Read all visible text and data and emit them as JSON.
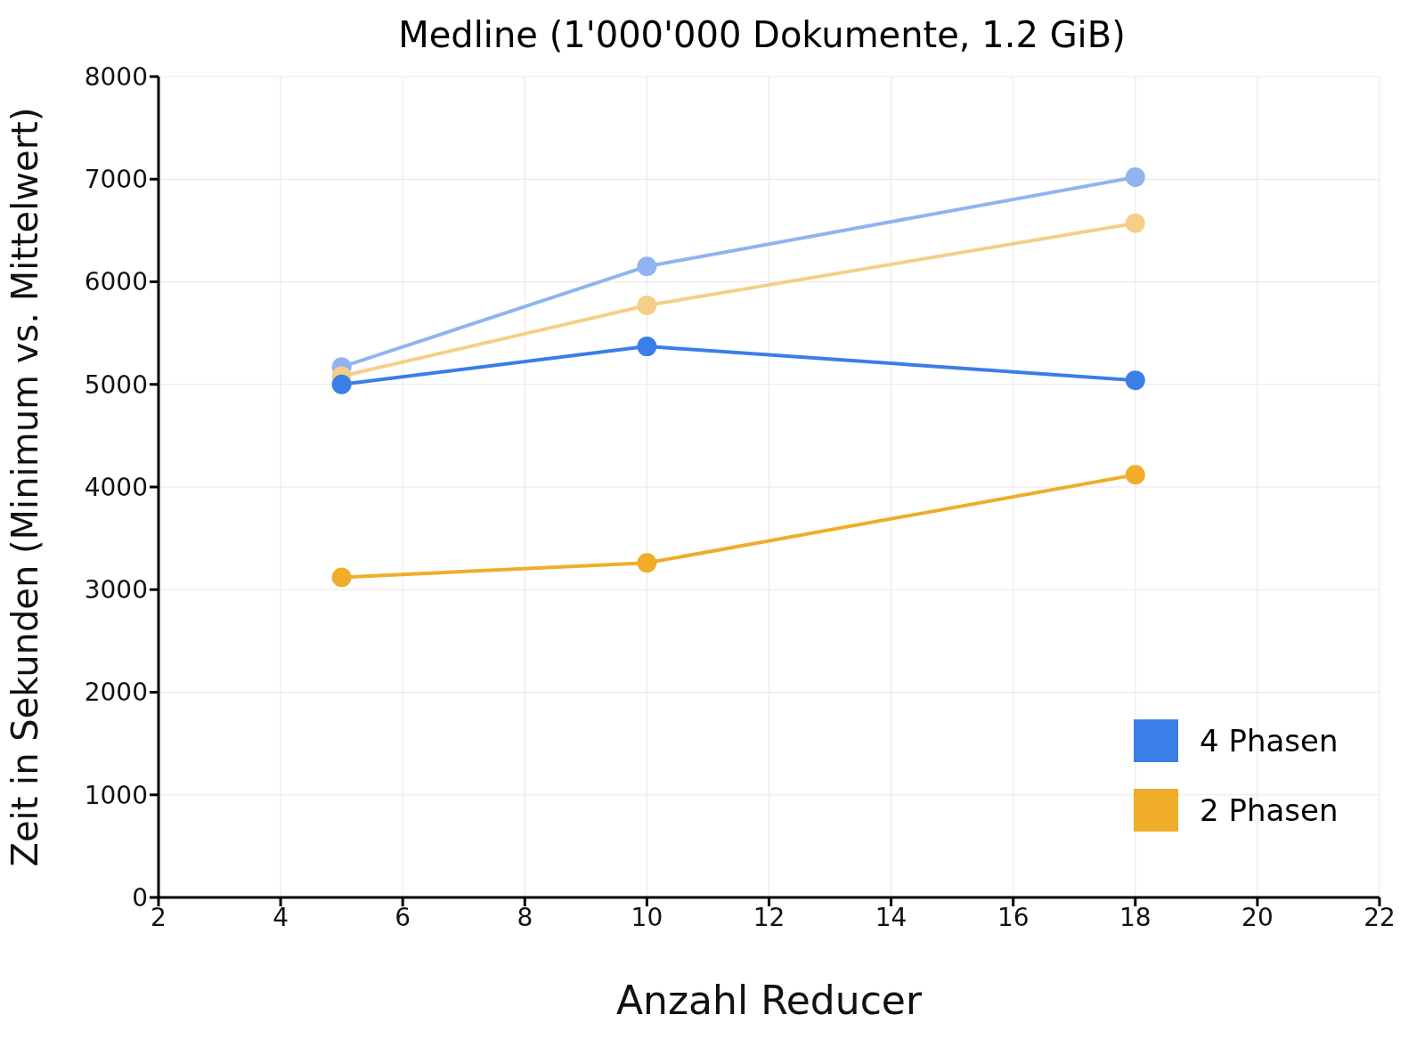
{
  "chart_data": {
    "type": "line",
    "title": "Medline (1'000'000 Dokumente, 1.2 GiB)",
    "xlabel": "Anzahl Reducer",
    "ylabel": "Zeit in Sekunden (Minimum vs. Mittelwert)",
    "x": [
      5,
      10,
      18
    ],
    "series": [
      {
        "color": "#8fb4ef",
        "values": [
          5170,
          6150,
          7020
        ]
      },
      {
        "color": "#f5cf88",
        "values": [
          5080,
          5770,
          6570
        ]
      },
      {
        "name": "4 Phasen",
        "color": "#3a7ee8",
        "values": [
          5000,
          5370,
          5040
        ]
      },
      {
        "name": "2 Phasen",
        "color": "#f0ad2a",
        "values": [
          3120,
          3260,
          4120
        ]
      }
    ],
    "xlim": [
      2,
      22
    ],
    "xticks": [
      2,
      4,
      6,
      8,
      10,
      12,
      14,
      16,
      18,
      20,
      22
    ],
    "ylim": [
      0,
      8000
    ],
    "yticks": [
      0,
      1000,
      2000,
      3000,
      4000,
      5000,
      6000,
      7000,
      8000
    ],
    "grid": true,
    "legend": "bottom right",
    "marker": "circle",
    "line_style": "solid"
  }
}
